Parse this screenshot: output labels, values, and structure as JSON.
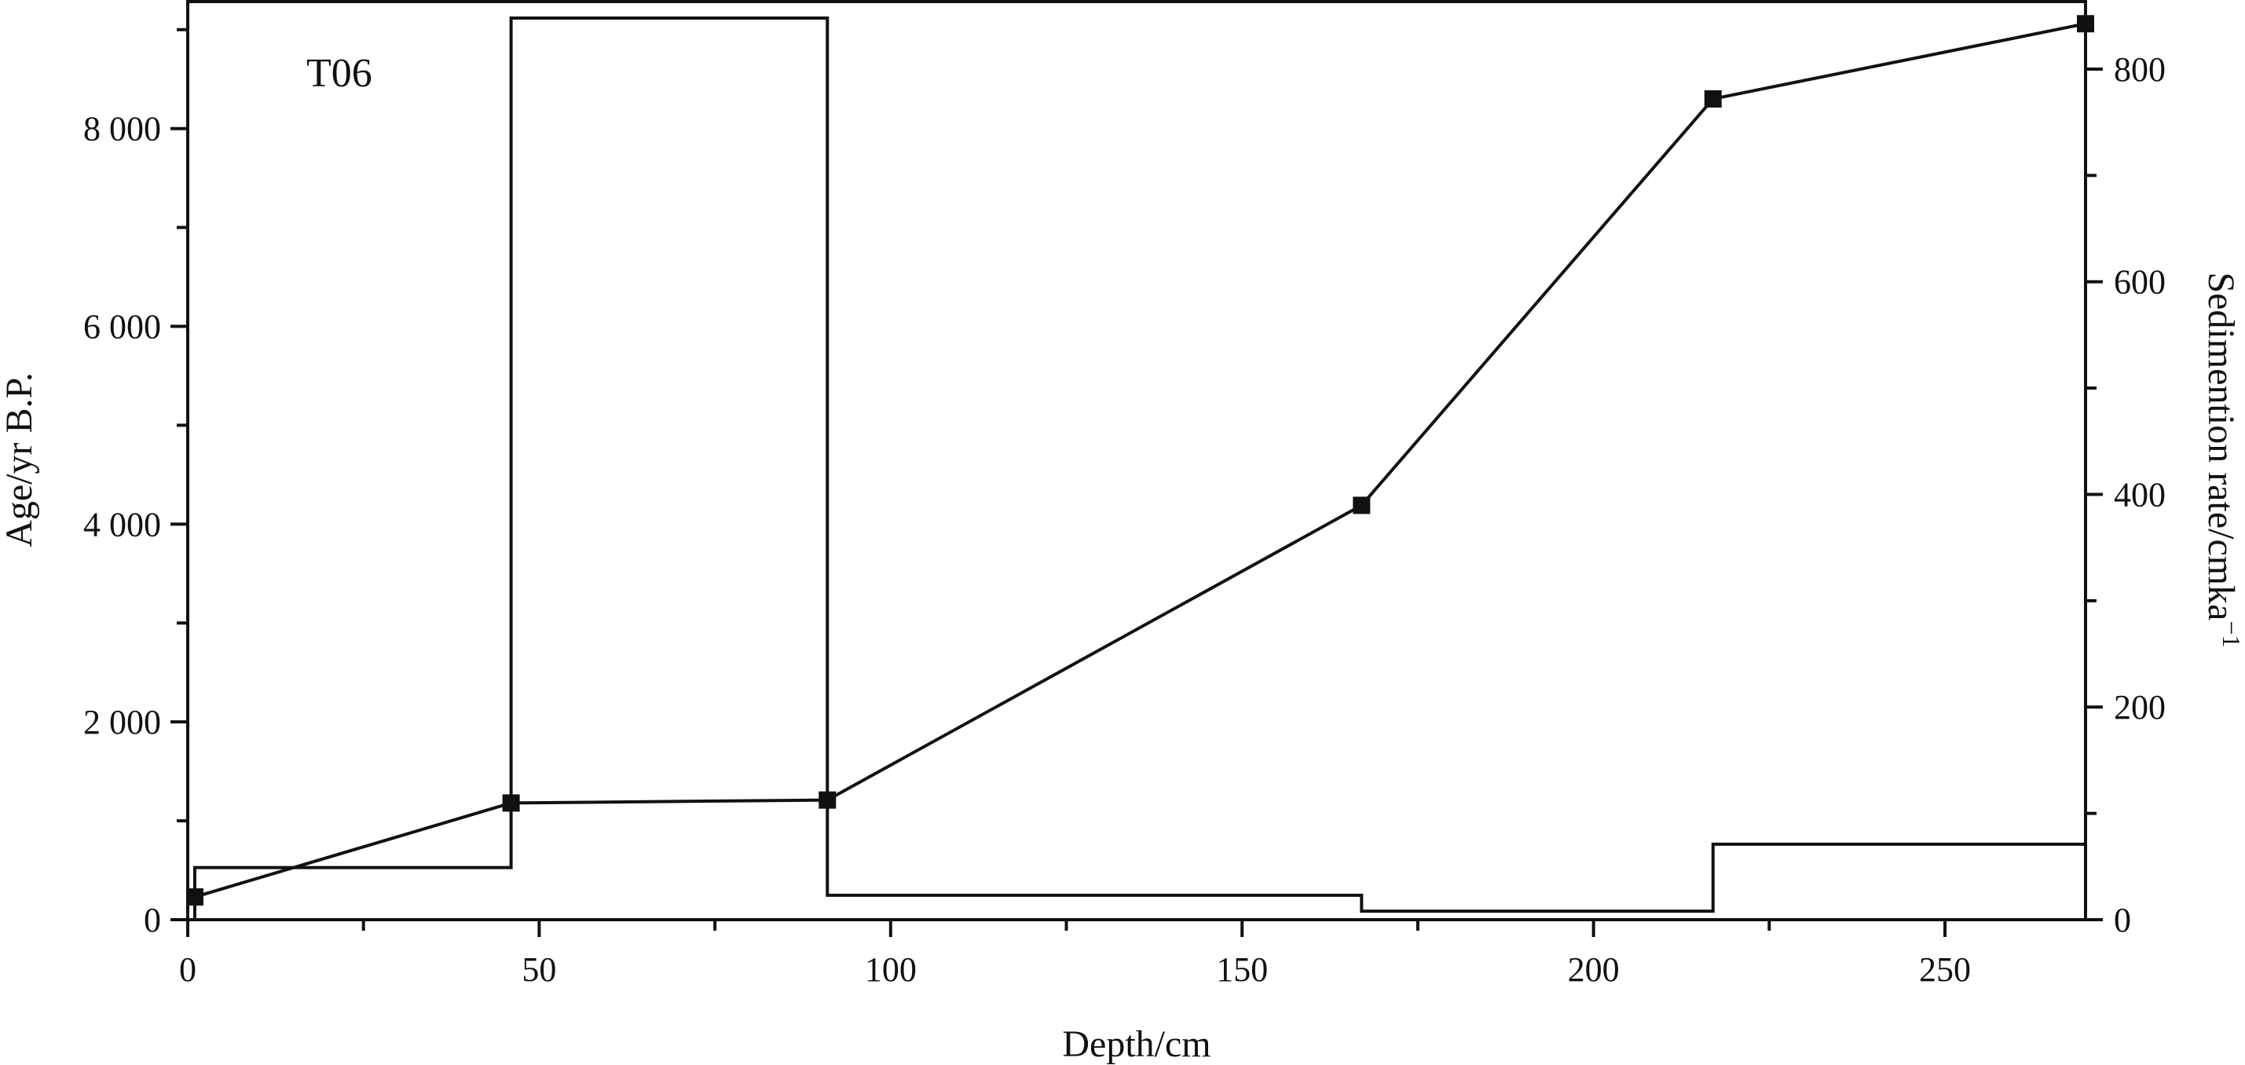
{
  "chart_data": {
    "type": "line",
    "panel_label": "T06",
    "xlabel": "Depth/cm",
    "ylabel_left": "Age/yr B.P.",
    "ylabel_right": "Sedimention rate/cmka",
    "ylabel_right_superscript": "−1",
    "xlim": [
      0,
      270
    ],
    "ylim_left": [
      0,
      9300
    ],
    "ylim_right": [
      0,
      865
    ],
    "x_ticks": [
      0,
      50,
      100,
      150,
      200,
      250
    ],
    "x_tick_labels": [
      "0",
      "50",
      "100",
      "150",
      "200",
      "250"
    ],
    "x_minor_ticks": [
      25,
      75,
      125,
      175,
      225
    ],
    "y_left_ticks": [
      0,
      2000,
      4000,
      6000,
      8000
    ],
    "y_left_tick_labels": [
      "0",
      "2 000",
      "4 000",
      "6 000",
      "8 000"
    ],
    "y_left_minor_ticks": [
      1000,
      3000,
      5000,
      7000,
      9000
    ],
    "y_right_ticks": [
      0,
      200,
      400,
      600,
      800
    ],
    "y_right_tick_labels": [
      "0",
      "200",
      "400",
      "600",
      "800"
    ],
    "y_right_minor_ticks": [
      100,
      300,
      500,
      700
    ],
    "grid": false,
    "series": [
      {
        "axis": "left",
        "style": "line-square-markers",
        "color": "#111111",
        "points": [
          {
            "x": 1,
            "y": 230
          },
          {
            "x": 46,
            "y": 1180
          },
          {
            "x": 91,
            "y": 1210
          },
          {
            "x": 167,
            "y": 4190
          },
          {
            "x": 217,
            "y": 8300
          },
          {
            "x": 270,
            "y": 9060
          }
        ]
      },
      {
        "axis": "right",
        "style": "step",
        "color": "#111111",
        "steps": [
          {
            "x0": 1,
            "x1": 46,
            "y": 49
          },
          {
            "x0": 46,
            "x1": 91,
            "y": 848
          },
          {
            "x0": 91,
            "x1": 167,
            "y": 23
          },
          {
            "x0": 167,
            "x1": 217,
            "y": 8
          },
          {
            "x0": 217,
            "x1": 270,
            "y": 71
          }
        ]
      }
    ]
  }
}
